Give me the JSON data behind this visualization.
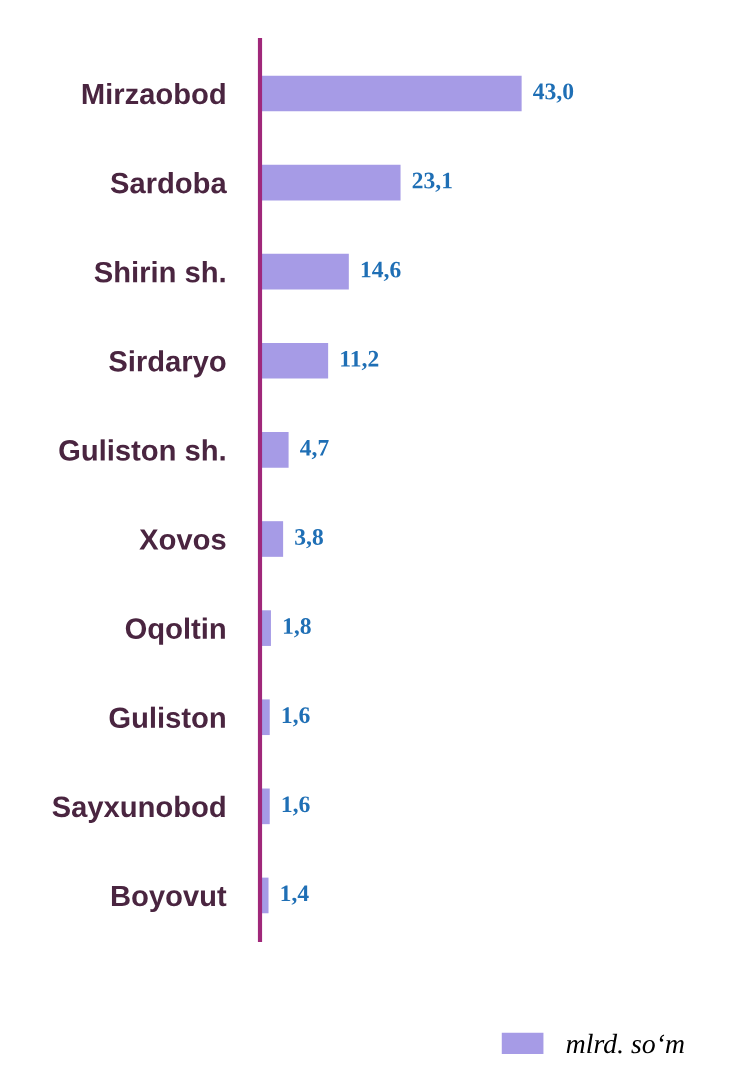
{
  "chart_data": {
    "type": "bar",
    "orientation": "horizontal",
    "categories": [
      "Mirzaobod",
      "Sardoba",
      "Shirin sh.",
      "Sirdaryo",
      "Guliston sh.",
      "Xovos",
      "Oqoltin",
      "Guliston",
      "Sayxunobod",
      "Boyovut"
    ],
    "series": [
      {
        "name": "mlrd. so‘m",
        "color": "#a69be6",
        "values": [
          43.0,
          23.1,
          14.6,
          11.2,
          4.7,
          3.8,
          1.8,
          1.6,
          1.6,
          1.4
        ],
        "value_labels": [
          "43,0",
          "23,1",
          "14,6",
          "11,2",
          "4,7",
          "3,8",
          "1,8",
          "1,6",
          "1,6",
          "1,4"
        ]
      }
    ],
    "legend": "bottom right",
    "grid": false
  }
}
